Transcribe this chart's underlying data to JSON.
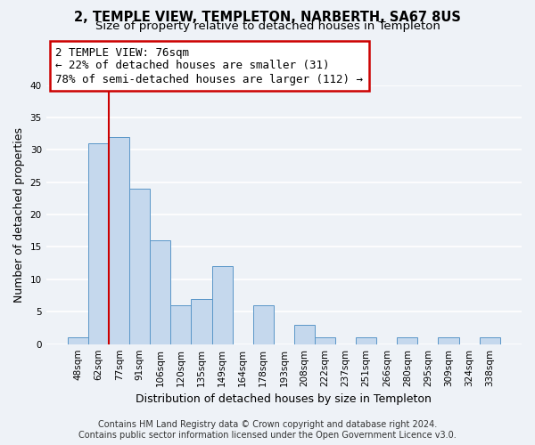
{
  "title": "2, TEMPLE VIEW, TEMPLETON, NARBERTH, SA67 8US",
  "subtitle": "Size of property relative to detached houses in Templeton",
  "xlabel": "Distribution of detached houses by size in Templeton",
  "ylabel": "Number of detached properties",
  "bar_labels": [
    "48sqm",
    "62sqm",
    "77sqm",
    "91sqm",
    "106sqm",
    "120sqm",
    "135sqm",
    "149sqm",
    "164sqm",
    "178sqm",
    "193sqm",
    "208sqm",
    "222sqm",
    "237sqm",
    "251sqm",
    "266sqm",
    "280sqm",
    "295sqm",
    "309sqm",
    "324sqm",
    "338sqm"
  ],
  "bar_values": [
    1,
    31,
    32,
    24,
    16,
    6,
    7,
    12,
    0,
    6,
    0,
    3,
    1,
    0,
    1,
    0,
    1,
    0,
    1,
    0,
    1
  ],
  "bar_color": "#c5d8ed",
  "bar_edge_color": "#5a96c8",
  "ylim": [
    0,
    40
  ],
  "yticks": [
    0,
    5,
    10,
    15,
    20,
    25,
    30,
    35,
    40
  ],
  "property_label": "2 TEMPLE VIEW: 76sqm",
  "annotation_line1": "← 22% of detached houses are smaller (31)",
  "annotation_line2": "78% of semi-detached houses are larger (112) →",
  "annotation_box_color": "#ffffff",
  "annotation_box_edge_color": "#cc0000",
  "vline_color": "#cc0000",
  "vline_x": 1.5,
  "footer1": "Contains HM Land Registry data © Crown copyright and database right 2024.",
  "footer2": "Contains public sector information licensed under the Open Government Licence v3.0.",
  "background_color": "#eef2f7",
  "plot_bg_color": "#eef2f7",
  "grid_color": "#ffffff",
  "title_fontsize": 10.5,
  "subtitle_fontsize": 9.5,
  "annotation_fontsize": 9,
  "label_fontsize": 9,
  "tick_fontsize": 7.5,
  "footer_fontsize": 7
}
